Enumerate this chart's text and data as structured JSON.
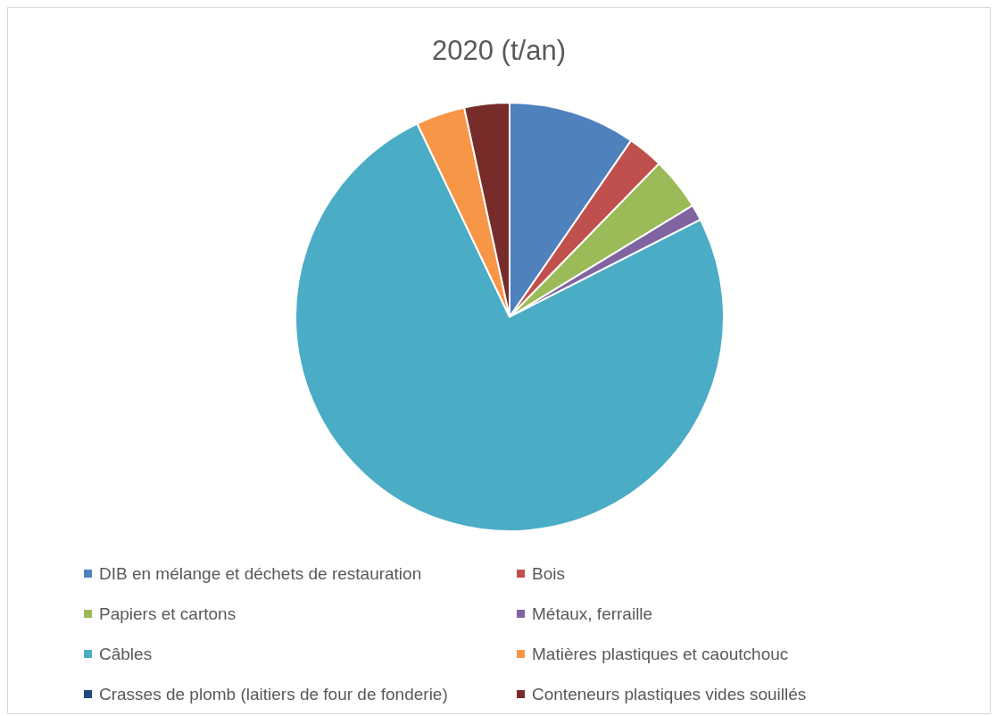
{
  "chart_data": {
    "type": "pie",
    "title": "2020 (t/an)",
    "categories": [
      "DIB en mélange et déchets de restauration",
      "Bois",
      "Papiers et cartons",
      "Métaux, ferraille",
      "Câbles",
      "Matières plastiques et caoutchouc",
      "Crasses de plomb  (laitiers de four de fonderie)",
      "Conteneurs plastiques vides souillés"
    ],
    "values": [
      9.6,
      2.7,
      4.0,
      1.2,
      75.4,
      3.7,
      null,
      3.4
    ],
    "colors": [
      "#4f81bd",
      "#c0504d",
      "#9bbb59",
      "#8064a2",
      "#4bacc6",
      "#f79646",
      "#1f497d",
      "#772c2a"
    ],
    "legend": "bottom"
  }
}
